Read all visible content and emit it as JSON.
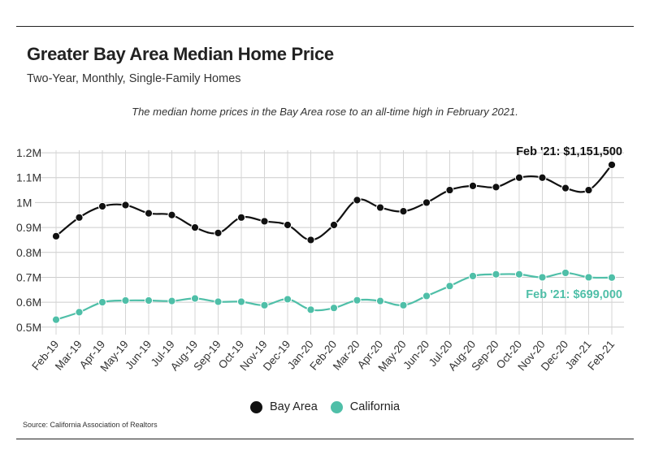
{
  "header": {
    "title": "Greater Bay Area Median Home Price",
    "subtitle": "Two-Year, Monthly, Single-Family Homes",
    "note": "The median home prices in the Bay Area rose to an all-time high in February 2021."
  },
  "footer": {
    "source": "Source:  California Association of Realtors"
  },
  "legend": {
    "items": [
      {
        "label": "Bay Area",
        "color": "#111111"
      },
      {
        "label": "California",
        "color": "#4fbfa8"
      }
    ]
  },
  "chart_data": {
    "type": "line",
    "title": "Greater Bay Area Median Home Price",
    "subtitle": "Two-Year, Monthly, Single-Family Homes",
    "categories": [
      "Feb-19",
      "Mar-19",
      "Apr-19",
      "May-19",
      "Jun-19",
      "Jul-19",
      "Aug-19",
      "Sep-19",
      "Oct-19",
      "Nov-19",
      "Dec-19",
      "Jan-20",
      "Feb-20",
      "Mar-20",
      "Apr-20",
      "May-20",
      "Jun-20",
      "Jul-20",
      "Aug-20",
      "Sep-20",
      "Oct-20",
      "Nov-20",
      "Dec-20",
      "Jan-21",
      "Feb-21"
    ],
    "y_tick_values": [
      500000,
      600000,
      700000,
      800000,
      900000,
      1000000,
      1100000,
      1200000
    ],
    "y_tick_labels": [
      "0.5M",
      "0.6M",
      "0.7M",
      "0.8M",
      "0.9M",
      "1M",
      "1.1M",
      "1.2M"
    ],
    "ylim": [
      470000,
      1210000
    ],
    "grid": {
      "vertical": true,
      "horizontal": true
    },
    "legend_position": "bottom",
    "series": [
      {
        "name": "Bay Area",
        "color": "#111111",
        "values": [
          865000,
          940000,
          985000,
          990000,
          957000,
          950000,
          900000,
          878000,
          940000,
          925000,
          910000,
          850000,
          910000,
          1010000,
          980000,
          965000,
          1000000,
          1050000,
          1067000,
          1062000,
          1100000,
          1100000,
          1058000,
          1050000,
          1151500
        ],
        "end_label": "Feb '21: $1,151,500"
      },
      {
        "name": "California",
        "color": "#4fbfa8",
        "values": [
          530000,
          560000,
          600000,
          607000,
          607000,
          605000,
          615000,
          602000,
          602000,
          588000,
          612000,
          570000,
          577000,
          608000,
          605000,
          588000,
          625000,
          665000,
          705000,
          712000,
          712000,
          700000,
          718000,
          700000,
          699000
        ],
        "end_label": "Feb '21: $699,000"
      }
    ]
  }
}
